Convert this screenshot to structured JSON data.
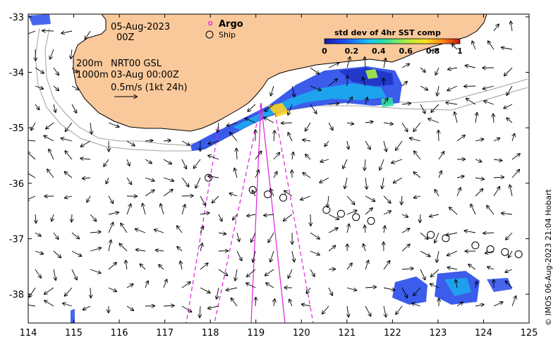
{
  "header": {
    "date": "05-Aug-2023",
    "hour": "00Z",
    "depth_line_1": "200m",
    "depth_line_2": "1000m",
    "model_label": "NRT00 GSL",
    "model_time": "03-Aug 00:00Z",
    "speed_scale": "0.5m/s (1kt 24h)"
  },
  "legend": {
    "argo_label": "Argo",
    "ship_label": "Ship",
    "argo_color": "#e020e0"
  },
  "colorbar": {
    "title": "std dev of 4hr SST comp",
    "ticks": [
      "0",
      "0.2",
      "0.4",
      "0.6",
      "0.8",
      "1"
    ],
    "range": [
      0,
      1
    ],
    "colors": [
      "#1a1aa0",
      "#1a50ff",
      "#18c0ff",
      "#30e0a0",
      "#a8f040",
      "#ffe020",
      "#ff8010",
      "#c01010"
    ]
  },
  "axes": {
    "x_ticks": [
      "114",
      "115",
      "116",
      "117",
      "118",
      "119",
      "120",
      "121",
      "122",
      "123",
      "124",
      "125"
    ],
    "y_ticks": [
      "-33",
      "-34",
      "-35",
      "-36",
      "-37",
      "-38"
    ],
    "x_range": [
      114,
      125
    ],
    "y_range": [
      -38.52,
      -32.95
    ]
  },
  "credit": "© IMOS 06-Aug-2023 21:04 Hobart",
  "colors": {
    "land": "#f9c99b",
    "coast": "#000000",
    "bathy": "#a0a0a0",
    "vector": "#000000",
    "argo_track": "#e020e0"
  },
  "ship_positions": [
    [
      117.96,
      -35.9
    ],
    [
      118.93,
      -36.12
    ],
    [
      119.26,
      -36.2
    ],
    [
      119.6,
      -36.26
    ],
    [
      120.55,
      -36.48
    ],
    [
      120.87,
      -36.55
    ],
    [
      121.2,
      -36.61
    ],
    [
      121.53,
      -36.68
    ],
    [
      122.84,
      -36.93
    ],
    [
      123.17,
      -36.99
    ],
    [
      123.82,
      -37.12
    ],
    [
      124.15,
      -37.19
    ],
    [
      124.47,
      -37.24
    ],
    [
      124.77,
      -37.28
    ]
  ]
}
